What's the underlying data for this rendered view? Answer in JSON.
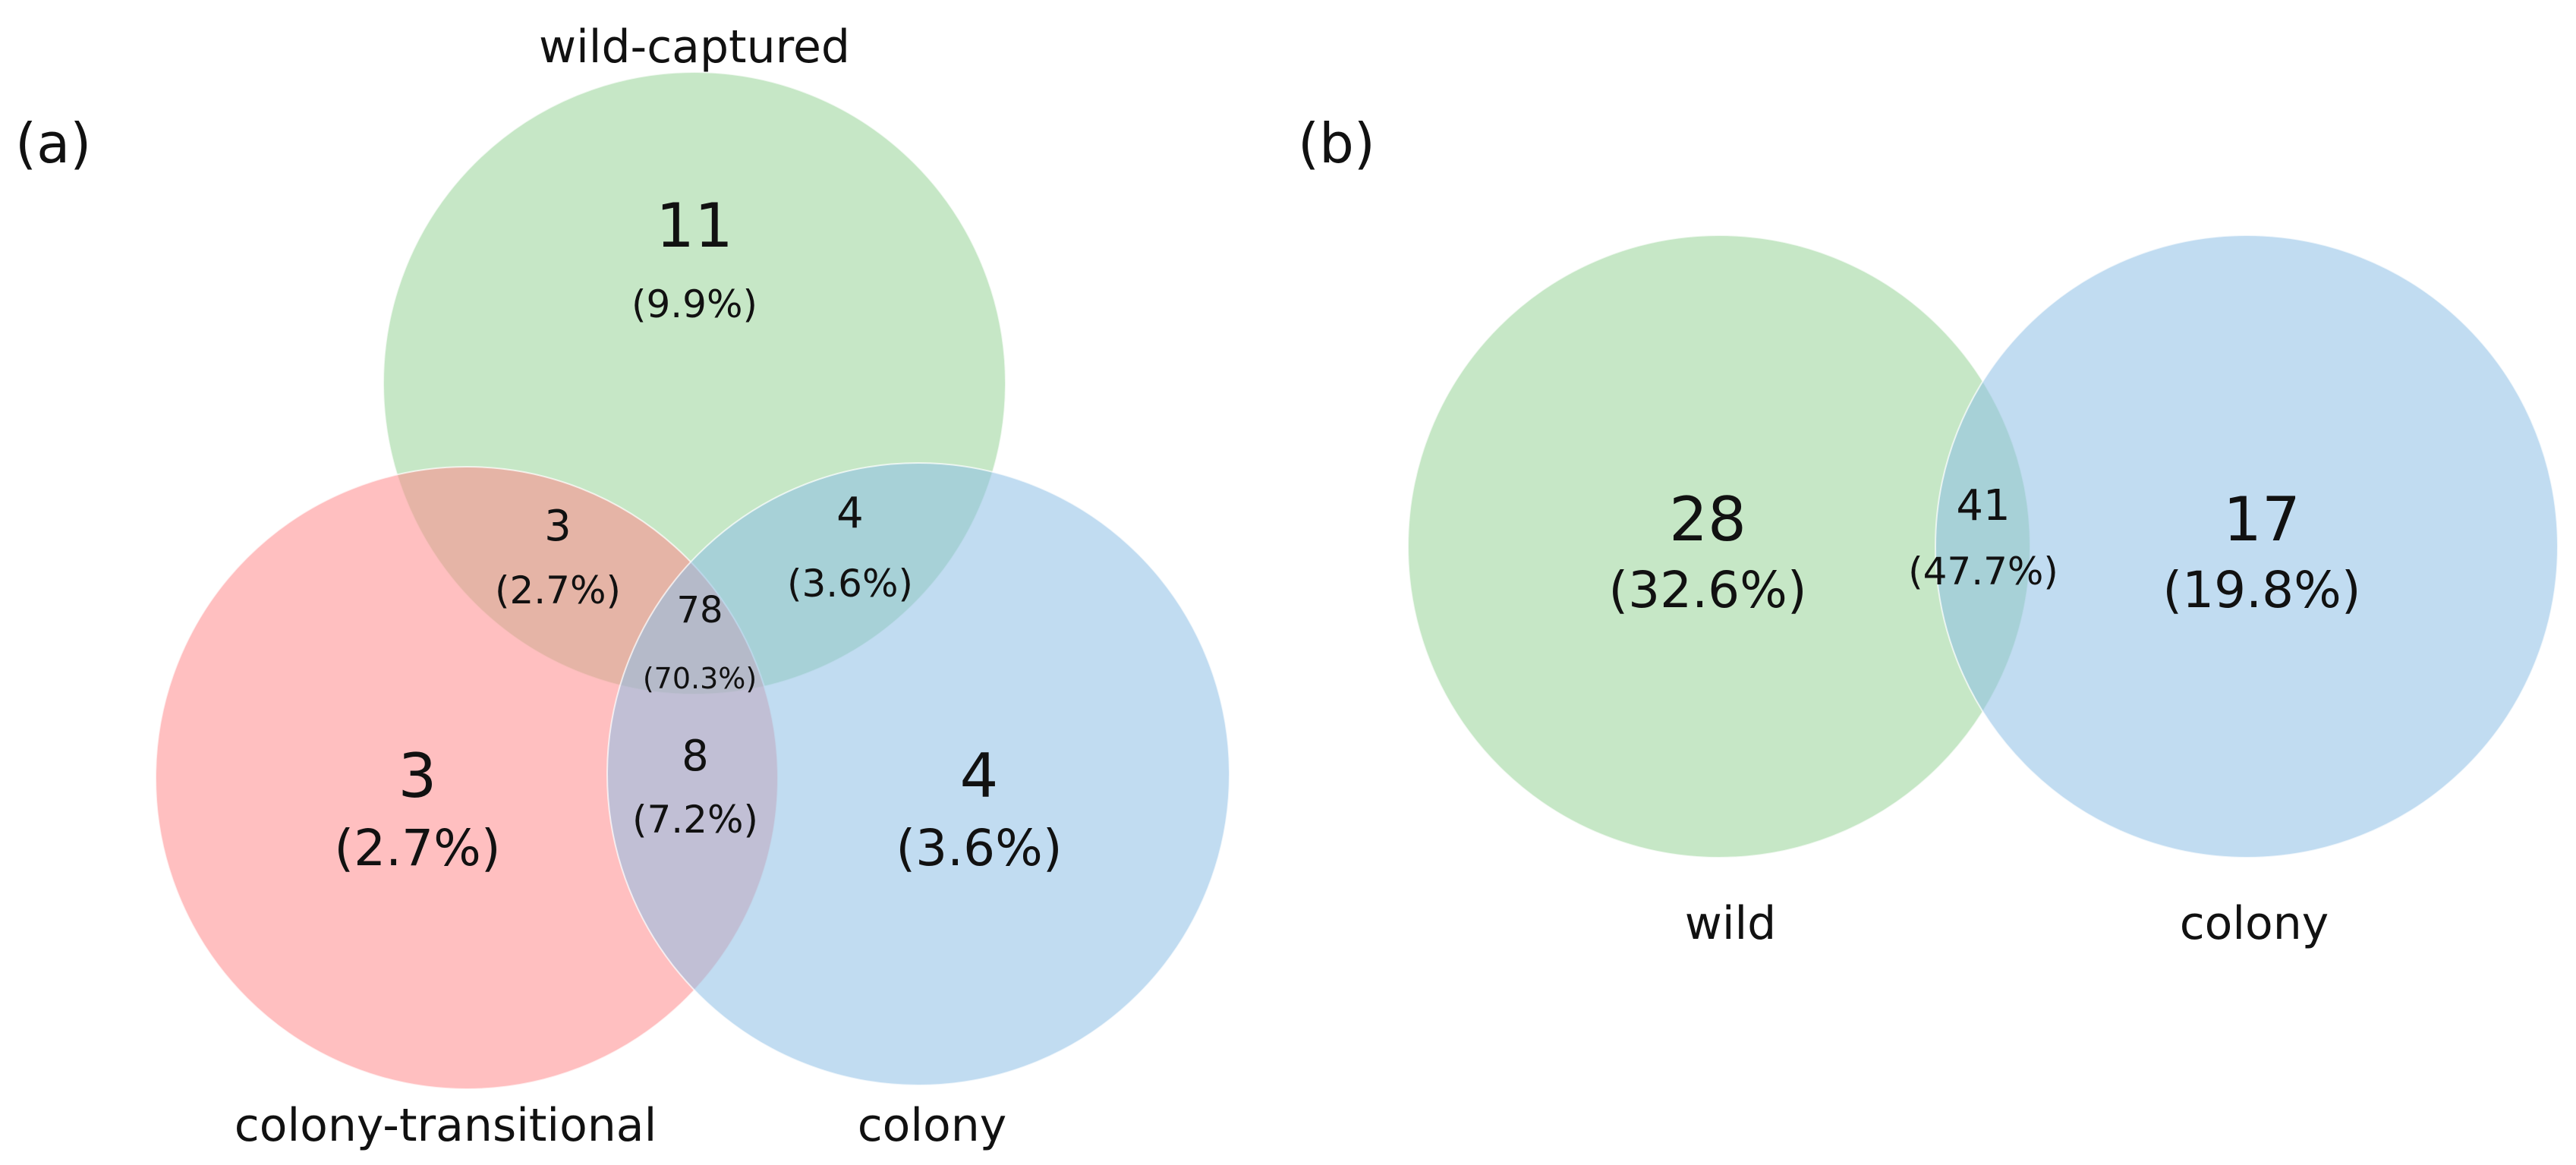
{
  "panel_a": {
    "label": "(a)",
    "sets": {
      "wild_captured": {
        "name": "wild-captured",
        "color": "#98d498"
      },
      "colony_transitional": {
        "name": "colony-transitional",
        "color": "#ff8a8c"
      },
      "colony": {
        "name": "colony",
        "color": "#8ec0e6"
      }
    },
    "regions": {
      "wild_only": {
        "count": "11",
        "percent": "(9.9%)"
      },
      "transitional_only": {
        "count": "3",
        "percent": "(2.7%)"
      },
      "colony_only": {
        "count": "4",
        "percent": "(3.6%)"
      },
      "wild_transitional": {
        "count": "3",
        "percent": "(2.7%)"
      },
      "wild_colony": {
        "count": "4",
        "percent": "(3.6%)"
      },
      "transitional_colony": {
        "count": "8",
        "percent": "(7.2%)"
      },
      "all_three": {
        "count": "78",
        "percent": "(70.3%)"
      }
    }
  },
  "panel_b": {
    "label": "(b)",
    "sets": {
      "wild": {
        "name": "wild",
        "color": "#98d498"
      },
      "colony": {
        "name": "colony",
        "color": "#8ec0e6"
      }
    },
    "regions": {
      "wild_only": {
        "count": "28",
        "percent": "(32.6%)"
      },
      "overlap": {
        "count": "41",
        "percent": "(47.7%)"
      },
      "colony_only": {
        "count": "17",
        "percent": "(19.8%)"
      }
    }
  }
}
